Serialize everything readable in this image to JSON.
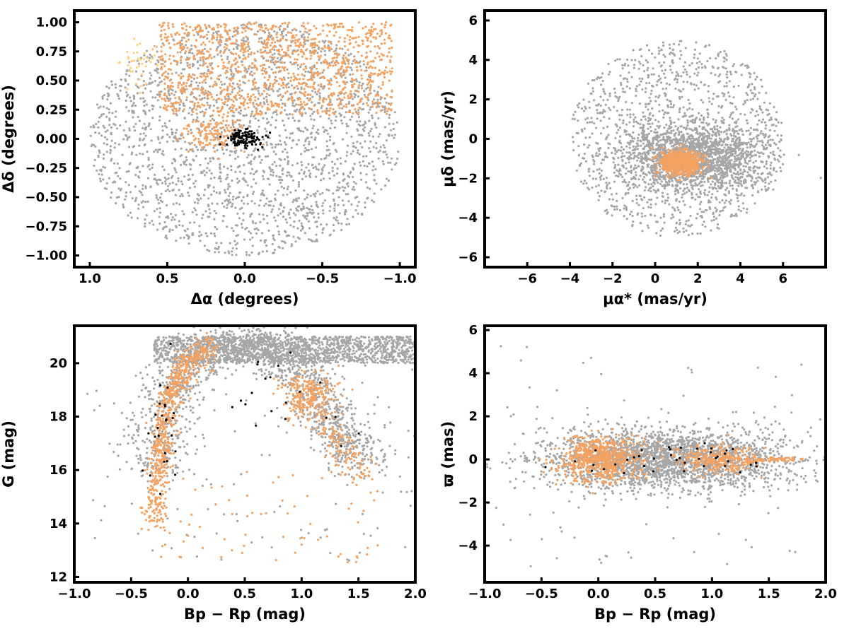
{
  "colors": {
    "field": "#a6a6a6",
    "member": "#f4a261",
    "core": "#000000",
    "faint_member": "#ffd27f"
  },
  "chart_data": [
    {
      "type": "scatter",
      "id": "sky",
      "xlabel": "Δα (degrees)",
      "ylabel": "Δδ (degrees)",
      "xlim": [
        1.1,
        -1.1
      ],
      "ylim": [
        -1.1,
        1.1
      ],
      "xticks": [
        1.0,
        0.5,
        0.0,
        -0.5,
        -1.0
      ],
      "xticklabels": [
        "1.0",
        "0.5",
        "0.0",
        "−0.5",
        "−1.0"
      ],
      "yticks": [
        -1.0,
        -0.75,
        -0.5,
        -0.25,
        0.0,
        0.25,
        0.5,
        0.75,
        1.0
      ],
      "yticklabels": [
        "−1.00",
        "−0.75",
        "−0.50",
        "−0.25",
        "0.00",
        "0.25",
        "0.50",
        "0.75",
        "1.00"
      ],
      "grid": false,
      "series": [
        {
          "color": "field",
          "shape": "ellipse",
          "center": [
            0.0,
            0.0
          ],
          "radius": [
            1.0,
            1.0
          ],
          "n": 2200
        },
        {
          "color": "member",
          "shape": "band",
          "region": {
            "x": [
              -0.95,
              0.55
            ],
            "y": [
              0.2,
              1.0
            ]
          },
          "n": 1200
        },
        {
          "color": "member",
          "shape": "blob",
          "center": [
            0.2,
            0.05
          ],
          "spread": [
            0.1,
            0.1
          ],
          "n": 150
        },
        {
          "color": "faint_member",
          "shape": "blob",
          "center": [
            0.68,
            0.6
          ],
          "spread": [
            0.08,
            0.12
          ],
          "n": 40
        },
        {
          "color": "core",
          "shape": "blob",
          "center": [
            0.0,
            0.0
          ],
          "spread": [
            0.06,
            0.04
          ],
          "n": 120
        }
      ]
    },
    {
      "type": "scatter",
      "id": "proper-motion",
      "xlabel": "μα* (mas/yr)",
      "ylabel": "μδ (mas/yr)",
      "xlim": [
        -8.0,
        8.0
      ],
      "ylim": [
        -6.5,
        6.5
      ],
      "xticks": [
        -6,
        -4,
        -2,
        0,
        2,
        4,
        6
      ],
      "xticklabels": [
        "−6",
        "−4",
        "−2",
        "0",
        "2",
        "4",
        "6"
      ],
      "yticks": [
        -6,
        -4,
        -2,
        0,
        2,
        4,
        6
      ],
      "yticklabels": [
        "−6",
        "−4",
        "−2",
        "0",
        "2",
        "4",
        "6"
      ],
      "grid": false,
      "series": [
        {
          "color": "field",
          "shape": "ellipse",
          "center": [
            1.0,
            0.0
          ],
          "radius": [
            5.0,
            5.0
          ],
          "n": 1200
        },
        {
          "color": "field",
          "shape": "blob",
          "center": [
            1.8,
            -0.9
          ],
          "spread": [
            1.6,
            0.8
          ],
          "n": 1800
        },
        {
          "color": "member",
          "shape": "blob",
          "center": [
            1.2,
            -1.2
          ],
          "spread": [
            0.45,
            0.3
          ],
          "n": 800
        }
      ]
    },
    {
      "type": "scatter",
      "id": "cmd",
      "xlabel": "Bp − Rp (mag)",
      "ylabel": "G (mag)",
      "xlim": [
        -1.0,
        2.0
      ],
      "ylim": [
        11.8,
        21.4
      ],
      "xticks": [
        -1.0,
        -0.5,
        0.0,
        0.5,
        1.0,
        1.5,
        2.0
      ],
      "xticklabels": [
        "−1.0",
        "−0.5",
        "0.0",
        "0.5",
        "1.0",
        "1.5",
        "2.0"
      ],
      "yticks": [
        12,
        14,
        16,
        18,
        20
      ],
      "yticklabels": [
        "12",
        "14",
        "16",
        "18",
        "20"
      ],
      "grid": false,
      "series": [
        {
          "color": "field",
          "shape": "sequence",
          "path": [
            [
              -0.3,
              16.0
            ],
            [
              -0.15,
              19.0
            ],
            [
              0.2,
              20.6
            ],
            [
              0.7,
              20.8
            ],
            [
              1.0,
              19.5
            ],
            [
              1.3,
              17.6
            ],
            [
              1.55,
              16.2
            ]
          ],
          "scatter": [
            0.15,
            0.35
          ],
          "n": 1500
        },
        {
          "color": "field",
          "shape": "band",
          "region": {
            "x": [
              -0.3,
              2.0
            ],
            "y": [
              20.0,
              21.0
            ]
          },
          "n": 1500
        },
        {
          "color": "field",
          "shape": "band",
          "region": {
            "x": [
              -0.9,
              2.0
            ],
            "y": [
              12.5,
              20.0
            ]
          },
          "n": 120
        },
        {
          "color": "member",
          "shape": "sequence",
          "path": [
            [
              -0.3,
              14.0
            ],
            [
              -0.25,
              16.5
            ],
            [
              -0.18,
              18.5
            ],
            [
              -0.05,
              19.8
            ],
            [
              0.2,
              20.6
            ]
          ],
          "scatter": [
            0.05,
            0.3
          ],
          "n": 700
        },
        {
          "color": "member",
          "shape": "blob",
          "center": [
            1.05,
            18.8
          ],
          "spread": [
            0.12,
            0.45
          ],
          "n": 250
        },
        {
          "color": "member",
          "shape": "sequence",
          "path": [
            [
              1.2,
              17.8
            ],
            [
              1.35,
              16.8
            ],
            [
              1.55,
              15.8
            ]
          ],
          "scatter": [
            0.06,
            0.3
          ],
          "n": 120
        },
        {
          "color": "member",
          "shape": "band",
          "region": {
            "x": [
              -0.3,
              1.7
            ],
            "y": [
              12.5,
              16.0
            ]
          },
          "n": 70
        },
        {
          "color": "core",
          "shape": "blob",
          "center": [
            -0.2,
            17.5
          ],
          "spread": [
            0.08,
            1.2
          ],
          "n": 25
        },
        {
          "color": "core",
          "shape": "blob",
          "center": [
            0.9,
            18.8
          ],
          "spread": [
            0.3,
            1.0
          ],
          "n": 20
        }
      ]
    },
    {
      "type": "scatter",
      "id": "parallax",
      "xlabel": "Bp − Rp (mag)",
      "ylabel": "ϖ (mas)",
      "xlim": [
        -1.0,
        2.0
      ],
      "ylim": [
        -5.7,
        6.2
      ],
      "xticks": [
        -1.0,
        -0.5,
        0.0,
        0.5,
        1.0,
        1.5,
        2.0
      ],
      "xticklabels": [
        "−1.0",
        "−0.5",
        "0.0",
        "0.5",
        "1.0",
        "1.5",
        "2.0"
      ],
      "yticks": [
        -4,
        -2,
        0,
        2,
        4,
        6
      ],
      "yticklabels": [
        "−4",
        "−2",
        "0",
        "2",
        "4",
        "6"
      ],
      "grid": false,
      "series": [
        {
          "color": "field",
          "shape": "blob",
          "center": [
            0.6,
            0.0
          ],
          "spread": [
            0.55,
            0.7
          ],
          "n": 2500
        },
        {
          "color": "field",
          "shape": "band",
          "region": {
            "x": [
              -0.9,
              2.0
            ],
            "y": [
              -5.0,
              5.5
            ]
          },
          "n": 80
        },
        {
          "color": "member",
          "shape": "blob",
          "center": [
            0.0,
            0.0
          ],
          "spread": [
            0.17,
            0.5
          ],
          "n": 700
        },
        {
          "color": "member",
          "shape": "blob",
          "center": [
            1.05,
            0.0
          ],
          "spread": [
            0.18,
            0.3
          ],
          "n": 300
        },
        {
          "color": "member",
          "shape": "band",
          "region": {
            "x": [
              1.3,
              1.8
            ],
            "y": [
              -0.1,
              0.1
            ]
          },
          "n": 60
        },
        {
          "color": "core",
          "shape": "blob",
          "center": [
            0.6,
            0.0
          ],
          "spread": [
            0.5,
            0.4
          ],
          "n": 40
        }
      ]
    }
  ]
}
